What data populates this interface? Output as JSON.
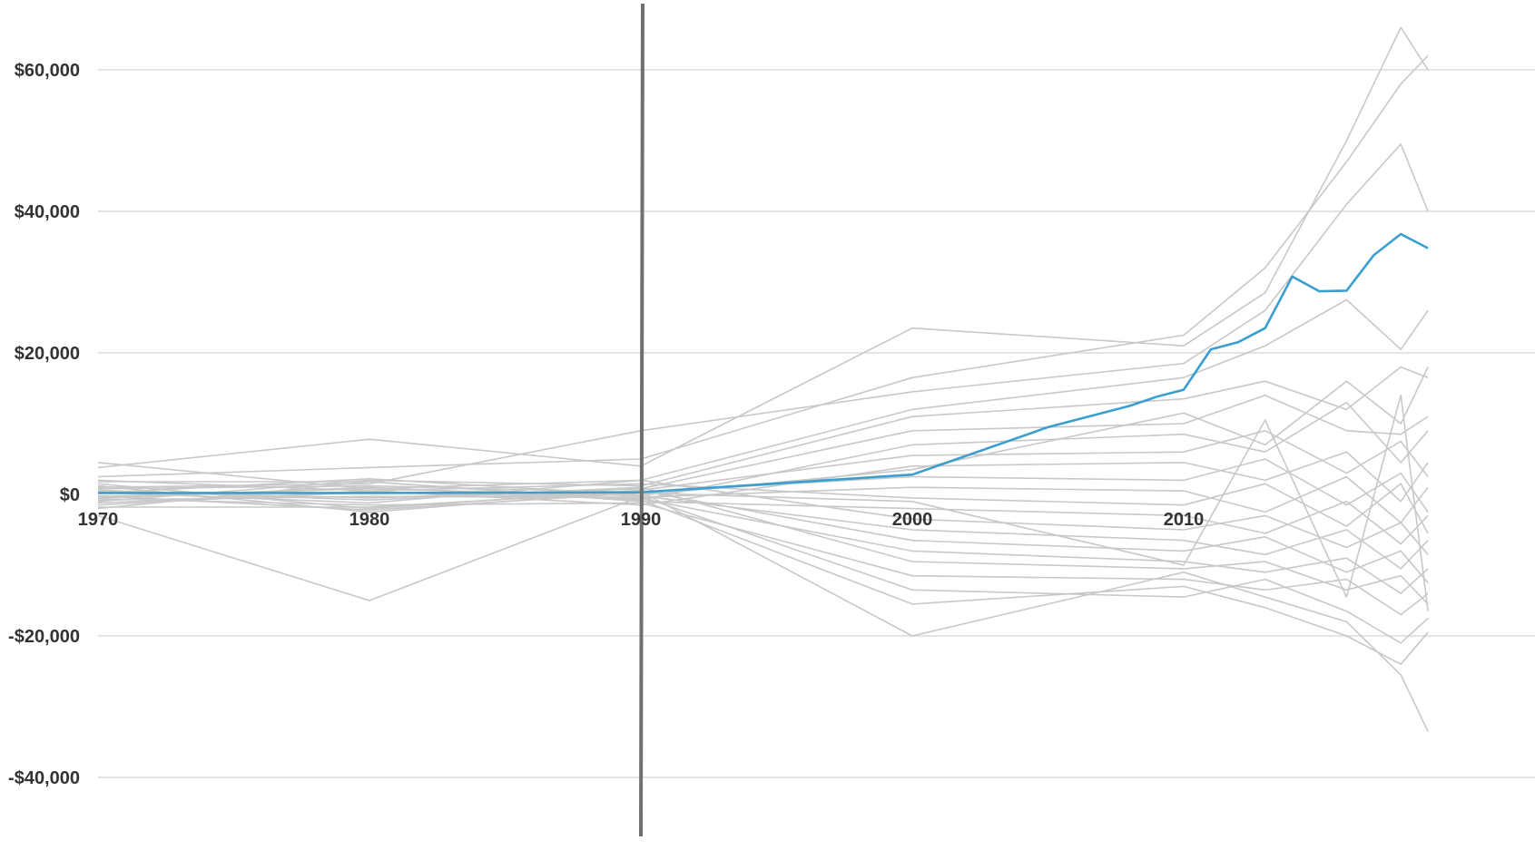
{
  "chart_data": {
    "type": "line",
    "title": "",
    "xlabel": "",
    "ylabel": "",
    "xlim": [
      1970,
      2019
    ],
    "ylim": [
      -40000,
      70000
    ],
    "x_ticks": [
      1970,
      1980,
      1990,
      2000,
      2010
    ],
    "x_tick_labels": [
      "1970",
      "1980",
      "1990",
      "2000",
      "2010"
    ],
    "y_ticks": [
      60000,
      40000,
      20000,
      0,
      -20000,
      -40000
    ],
    "y_tick_labels": [
      "$60,000",
      "$40,000",
      "$20,000",
      "$0",
      "-$20,000",
      "-$40,000"
    ],
    "grid": "horizontal",
    "legend": "none",
    "reference_line_x": 1990,
    "colors": {
      "background_series": "#c8c8c8",
      "highlight": "#3a9fcf",
      "reference_line": "#707070",
      "grid": "#dcdcdc"
    },
    "highlight_series": {
      "x": [
        1970,
        1980,
        1990,
        2000,
        2005,
        2008,
        2009,
        2010,
        2011,
        2012,
        2013,
        2014,
        2015,
        2016,
        2017,
        2018,
        2019
      ],
      "values": [
        200,
        200,
        300,
        2800,
        9500,
        12500,
        13800,
        14800,
        20500,
        21500,
        23500,
        30800,
        28700,
        28800,
        33800,
        36800,
        34800
      ]
    },
    "background_series": [
      {
        "x": [
          1970,
          1980,
          1990,
          2000,
          2010,
          2013,
          2016,
          2018,
          2019
        ],
        "values": [
          3800,
          7800,
          4000,
          23500,
          21000,
          28500,
          50000,
          66000,
          60000
        ]
      },
      {
        "x": [
          1970,
          1980,
          1990,
          2000,
          2010,
          2013,
          2016,
          2018,
          2019
        ],
        "values": [
          2500,
          3800,
          5000,
          16500,
          22500,
          32000,
          47000,
          58000,
          62000
        ]
      },
      {
        "x": [
          1970,
          1980,
          1990,
          2000,
          2010,
          2013,
          2016,
          2018,
          2019
        ],
        "values": [
          1000,
          1500,
          9000,
          14500,
          18500,
          26000,
          41000,
          49500,
          40000
        ]
      },
      {
        "x": [
          1970,
          1980,
          1990,
          2000,
          2010,
          2013,
          2016,
          2018,
          2019
        ],
        "values": [
          4500,
          800,
          2000,
          12000,
          16500,
          21000,
          27500,
          20500,
          26000
        ]
      },
      {
        "x": [
          1970,
          1980,
          1990,
          2000,
          2010,
          2013,
          2016,
          2018,
          2019
        ],
        "values": [
          -1000,
          2000,
          1200,
          11000,
          13500,
          16000,
          12000,
          18000,
          16500
        ]
      },
      {
        "x": [
          1970,
          1980,
          1990,
          2000,
          2010,
          2013,
          2016,
          2018,
          2019
        ],
        "values": [
          500,
          -500,
          800,
          9000,
          10000,
          14000,
          9000,
          8500,
          11000
        ]
      },
      {
        "x": [
          1970,
          1980,
          1990,
          2000,
          2010,
          2013,
          2016,
          2018,
          2019
        ],
        "values": [
          -500,
          1000,
          -800,
          7000,
          8500,
          6000,
          13000,
          4500,
          9000
        ]
      },
      {
        "x": [
          1970,
          1980,
          1990,
          2000,
          2010,
          2013,
          2016,
          2018,
          2019
        ],
        "values": [
          1500,
          -2000,
          600,
          5500,
          6000,
          9000,
          3000,
          7500,
          2500
        ]
      },
      {
        "x": [
          1970,
          1980,
          1990,
          2000,
          2010,
          2013,
          2016,
          2018,
          2019
        ],
        "values": [
          -1500,
          500,
          -1500,
          4000,
          4500,
          2000,
          6000,
          -1000,
          4500
        ]
      },
      {
        "x": [
          1970,
          1980,
          1990,
          2000,
          2010,
          2013,
          2016,
          2018,
          2019
        ],
        "values": [
          800,
          1200,
          300,
          2500,
          2000,
          5000,
          -1500,
          3000,
          -2500
        ]
      },
      {
        "x": [
          1970,
          1980,
          1990,
          2000,
          2010,
          2013,
          2016,
          2018,
          2019
        ],
        "values": [
          -800,
          -300,
          -400,
          1000,
          500,
          -2500,
          2500,
          -4000,
          1000
        ]
      },
      {
        "x": [
          1970,
          1980,
          1990,
          2000,
          2010,
          2013,
          2016,
          2018,
          2019
        ],
        "values": [
          2000,
          500,
          1500,
          -500,
          -1500,
          1500,
          -4500,
          1500,
          -5500
        ]
      },
      {
        "x": [
          1970,
          1980,
          1990,
          2000,
          2010,
          2013,
          2016,
          2018,
          2019
        ],
        "values": [
          -2000,
          1800,
          -1000,
          -2000,
          -3000,
          -5500,
          -1000,
          -7000,
          -3000
        ]
      },
      {
        "x": [
          1970,
          1980,
          1990,
          2000,
          2010,
          2013,
          2016,
          2018,
          2019
        ],
        "values": [
          300,
          -1200,
          2000,
          -3500,
          -5000,
          -3000,
          -7500,
          -4000,
          -8500
        ]
      },
      {
        "x": [
          1970,
          1980,
          1990,
          2000,
          2010,
          2013,
          2016,
          2018,
          2019
        ],
        "values": [
          -300,
          800,
          -200,
          -5000,
          -6500,
          -8500,
          -5000,
          -10500,
          -6500
        ]
      },
      {
        "x": [
          1970,
          1980,
          1990,
          2000,
          2010,
          2013,
          2016,
          2018,
          2019
        ],
        "values": [
          1200,
          -2500,
          500,
          -6500,
          -8000,
          -6000,
          -11000,
          -8000,
          -12500
        ]
      },
      {
        "x": [
          1970,
          1980,
          1990,
          2000,
          2010,
          2013,
          2016,
          2018,
          2019
        ],
        "values": [
          -1200,
          300,
          -600,
          -8000,
          -9500,
          -11000,
          -9000,
          -14000,
          -10500
        ]
      },
      {
        "x": [
          1970,
          1980,
          1990,
          2000,
          2010,
          2013,
          2016,
          2018,
          2019
        ],
        "values": [
          600,
          -800,
          1000,
          -9500,
          -10500,
          -9500,
          -13500,
          -11500,
          -15500
        ]
      },
      {
        "x": [
          1970,
          1980,
          1990,
          2000,
          2010,
          2013,
          2016,
          2018,
          2019
        ],
        "values": [
          -600,
          -1500,
          -1200,
          -11500,
          -12000,
          -13500,
          -12000,
          -17000,
          -14000
        ]
      },
      {
        "x": [
          1970,
          1980,
          1990,
          2000,
          2010,
          2013,
          2016,
          2018,
          2019
        ],
        "values": [
          -3000,
          -15000,
          -300,
          -13500,
          -14500,
          -12000,
          -16500,
          -21000,
          -17500
        ]
      },
      {
        "x": [
          1970,
          1980,
          1990,
          2000,
          2010,
          2013,
          2016,
          2018,
          2019
        ],
        "values": [
          1800,
          1800,
          -800,
          -15500,
          -13000,
          -16000,
          -20000,
          -24000,
          -19500
        ]
      },
      {
        "x": [
          1970,
          1980,
          1990,
          2000,
          2010,
          2013,
          2016,
          2018,
          2019
        ],
        "values": [
          -1800,
          -1800,
          400,
          -20000,
          -11000,
          -14500,
          -18000,
          -25500,
          -33500
        ]
      },
      {
        "x": [
          1970,
          1980,
          1990,
          2000,
          2010,
          2013,
          2016,
          2018,
          2019
        ],
        "values": [
          200,
          2200,
          -100,
          3500,
          11500,
          7000,
          16000,
          10000,
          18000
        ]
      },
      {
        "x": [
          1970,
          1980,
          1990,
          2000,
          2010,
          2013,
          2016,
          2018,
          2019
        ],
        "values": [
          -200,
          -2200,
          200,
          -1000,
          -10000,
          10500,
          -14500,
          14000,
          -16500
        ]
      }
    ]
  }
}
